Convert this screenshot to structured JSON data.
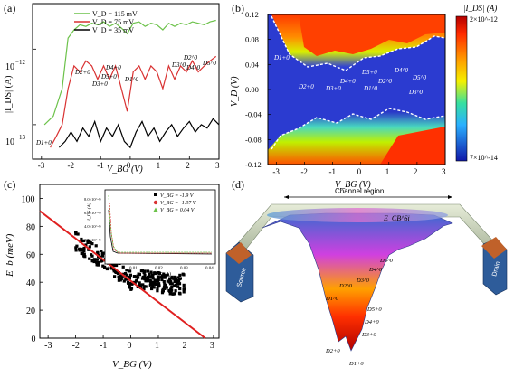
{
  "figure": {
    "panel_labels": [
      "(a)",
      "(b)",
      "(c)",
      "(d)"
    ]
  },
  "chart_data": [
    {
      "panel": "a",
      "type": "line",
      "ylabel": "|I_DS| (A)",
      "xlabel": "V_BG (V)",
      "xlim": [
        -3.3,
        3.0
      ],
      "ytick_labels": [
        "10^-12",
        "10^-13"
      ],
      "xtick_labels": [
        "-3",
        "-2",
        "-1",
        "0",
        "1",
        "2",
        "3"
      ],
      "log_y": true,
      "series": [
        {
          "name": "V_D = 115 mV",
          "color": "#6cc24a",
          "x": [
            -2.9,
            -2.6,
            -2.3,
            -2.1,
            -1.9,
            -1.7,
            -1.5,
            -1.3,
            -1.1,
            -0.9,
            -0.7,
            -0.5,
            -0.3,
            -0.1,
            0.1,
            0.3,
            0.5,
            0.7,
            0.9,
            1.1,
            1.3,
            1.5,
            1.7,
            1.9,
            2.1,
            2.3,
            2.5,
            2.7,
            2.9
          ],
          "y": [
            1e-13,
            1.3e-13,
            3e-13,
            1.4e-12,
            1.8e-12,
            2.1e-12,
            2e-12,
            2.2e-12,
            2.1e-12,
            2.3e-12,
            2e-12,
            2.2e-12,
            1.9e-12,
            1.6e-12,
            2.2e-12,
            2.3e-12,
            2e-12,
            2.2e-12,
            2.1e-12,
            1.8e-12,
            2.2e-12,
            2e-12,
            2.2e-12,
            2.1e-12,
            2.3e-12,
            2.2e-12,
            2.1e-12,
            2.3e-12,
            2.4e-12
          ]
        },
        {
          "name": "V_D = 75 mV",
          "color": "#d93232",
          "x": [
            -2.7,
            -2.5,
            -2.3,
            -2.1,
            -1.9,
            -1.7,
            -1.5,
            -1.3,
            -1.1,
            -0.9,
            -0.7,
            -0.5,
            -0.3,
            -0.1,
            0.1,
            0.3,
            0.5,
            0.7,
            0.9,
            1.1,
            1.3,
            1.5,
            1.7,
            1.9,
            2.1,
            2.3,
            2.5,
            2.7,
            2.9
          ],
          "y": [
            5e-14,
            7e-14,
            1e-13,
            3e-13,
            6e-13,
            5e-13,
            7e-13,
            6e-13,
            4e-13,
            6e-13,
            4e-13,
            6e-13,
            3e-13,
            1.5e-13,
            5e-13,
            6e-13,
            4e-13,
            6e-13,
            5e-13,
            3e-13,
            6e-13,
            4e-13,
            6e-13,
            5e-13,
            7e-13,
            5e-13,
            6e-13,
            7e-13,
            8e-13
          ]
        },
        {
          "name": "V_D = 35 mV",
          "color": "#000000",
          "x": [
            -2.4,
            -2.2,
            -2.0,
            -1.8,
            -1.6,
            -1.4,
            -1.2,
            -1.0,
            -0.8,
            -0.6,
            -0.4,
            -0.2,
            0.0,
            0.2,
            0.4,
            0.6,
            0.8,
            1.0,
            1.2,
            1.4,
            1.6,
            1.8,
            2.0,
            2.2,
            2.4,
            2.6,
            2.8,
            3.0
          ],
          "y": [
            5e-14,
            6e-14,
            8e-14,
            6e-14,
            9e-14,
            7e-14,
            1.1e-13,
            6e-14,
            9e-14,
            7e-14,
            1e-13,
            6e-14,
            5e-14,
            8e-14,
            1.1e-13,
            7e-14,
            9e-14,
            6e-14,
            8e-14,
            1e-13,
            7e-14,
            9e-14,
            1.1e-13,
            8e-14,
            1e-13,
            9e-14,
            1.2e-13,
            1e-13
          ]
        }
      ],
      "annotations": [
        "D1+0",
        "D2+0",
        "D3+0",
        "D4+0",
        "D5+0",
        "D1^0",
        "D2^0",
        "D3^0",
        "D4^0",
        "D5^0"
      ]
    },
    {
      "panel": "b",
      "type": "heatmap",
      "xlabel": "V_BG (V)",
      "ylabel": "V_D (V)",
      "xtick_labels": [
        "-3",
        "-2",
        "-1",
        "0",
        "1",
        "2",
        "3"
      ],
      "ytick_labels": [
        "0.12",
        "0.08",
        "0.04",
        "0.00",
        "-0.04",
        "-0.08",
        "-0.12"
      ],
      "colorbar": {
        "title": "|I_DS| (A)",
        "max_label": "2×10^-12",
        "min_label": "7×10^-14"
      },
      "annotations": [
        "D1+0",
        "D2+0",
        "D3+0",
        "D4+0",
        "D5+0",
        "D1^0",
        "D2^0",
        "D3^0",
        "D4^0",
        "D5^0"
      ]
    },
    {
      "panel": "c",
      "type": "scatter",
      "xlabel": "V_BG (V)",
      "ylabel": "E_b (meV)",
      "xlim": [
        -3.3,
        3.2
      ],
      "ylim": [
        0,
        110
      ],
      "xtick_labels": [
        "-3",
        "-2",
        "-1",
        "0",
        "1",
        "2",
        "3"
      ],
      "ytick_labels": [
        "0",
        "20",
        "40",
        "60",
        "80",
        "100"
      ],
      "fit_line": {
        "color": "#e02020",
        "x": [
          -3.3,
          2.7
        ],
        "y": [
          91,
          0
        ]
      },
      "scatter_color": "#000000",
      "inset": {
        "xlabel": "1/T (K^-1)",
        "ylabel": "I_DS (A)",
        "xtick_labels": [
          "0.00",
          "0.01",
          "0.02",
          "0.03",
          "0.04"
        ],
        "ytick_labels": [
          "8.0×10^-9",
          "6.0×10^-9",
          "4.0×10^-9",
          "2.0×10^-9",
          "0"
        ],
        "legend": [
          {
            "label": "V_BG = -1.9 V",
            "color": "#000000",
            "marker": "square"
          },
          {
            "label": "V_BG = -1.07 V",
            "color": "#d93232",
            "marker": "circle"
          },
          {
            "label": "V_BG = 0.04 V",
            "color": "#6cc24a",
            "marker": "triangle"
          }
        ]
      }
    }
  ],
  "panel_d": {
    "channel_label": "Channel region",
    "ecb_label": "E_CB^Si",
    "source_label": "Source",
    "drain_label": "Drain",
    "dopant_labels": [
      "D1+0",
      "D2+0",
      "D3+0",
      "D4+0",
      "D5+0",
      "D1^0",
      "D2^0",
      "D3^0",
      "D4^0",
      "D5^0"
    ]
  }
}
